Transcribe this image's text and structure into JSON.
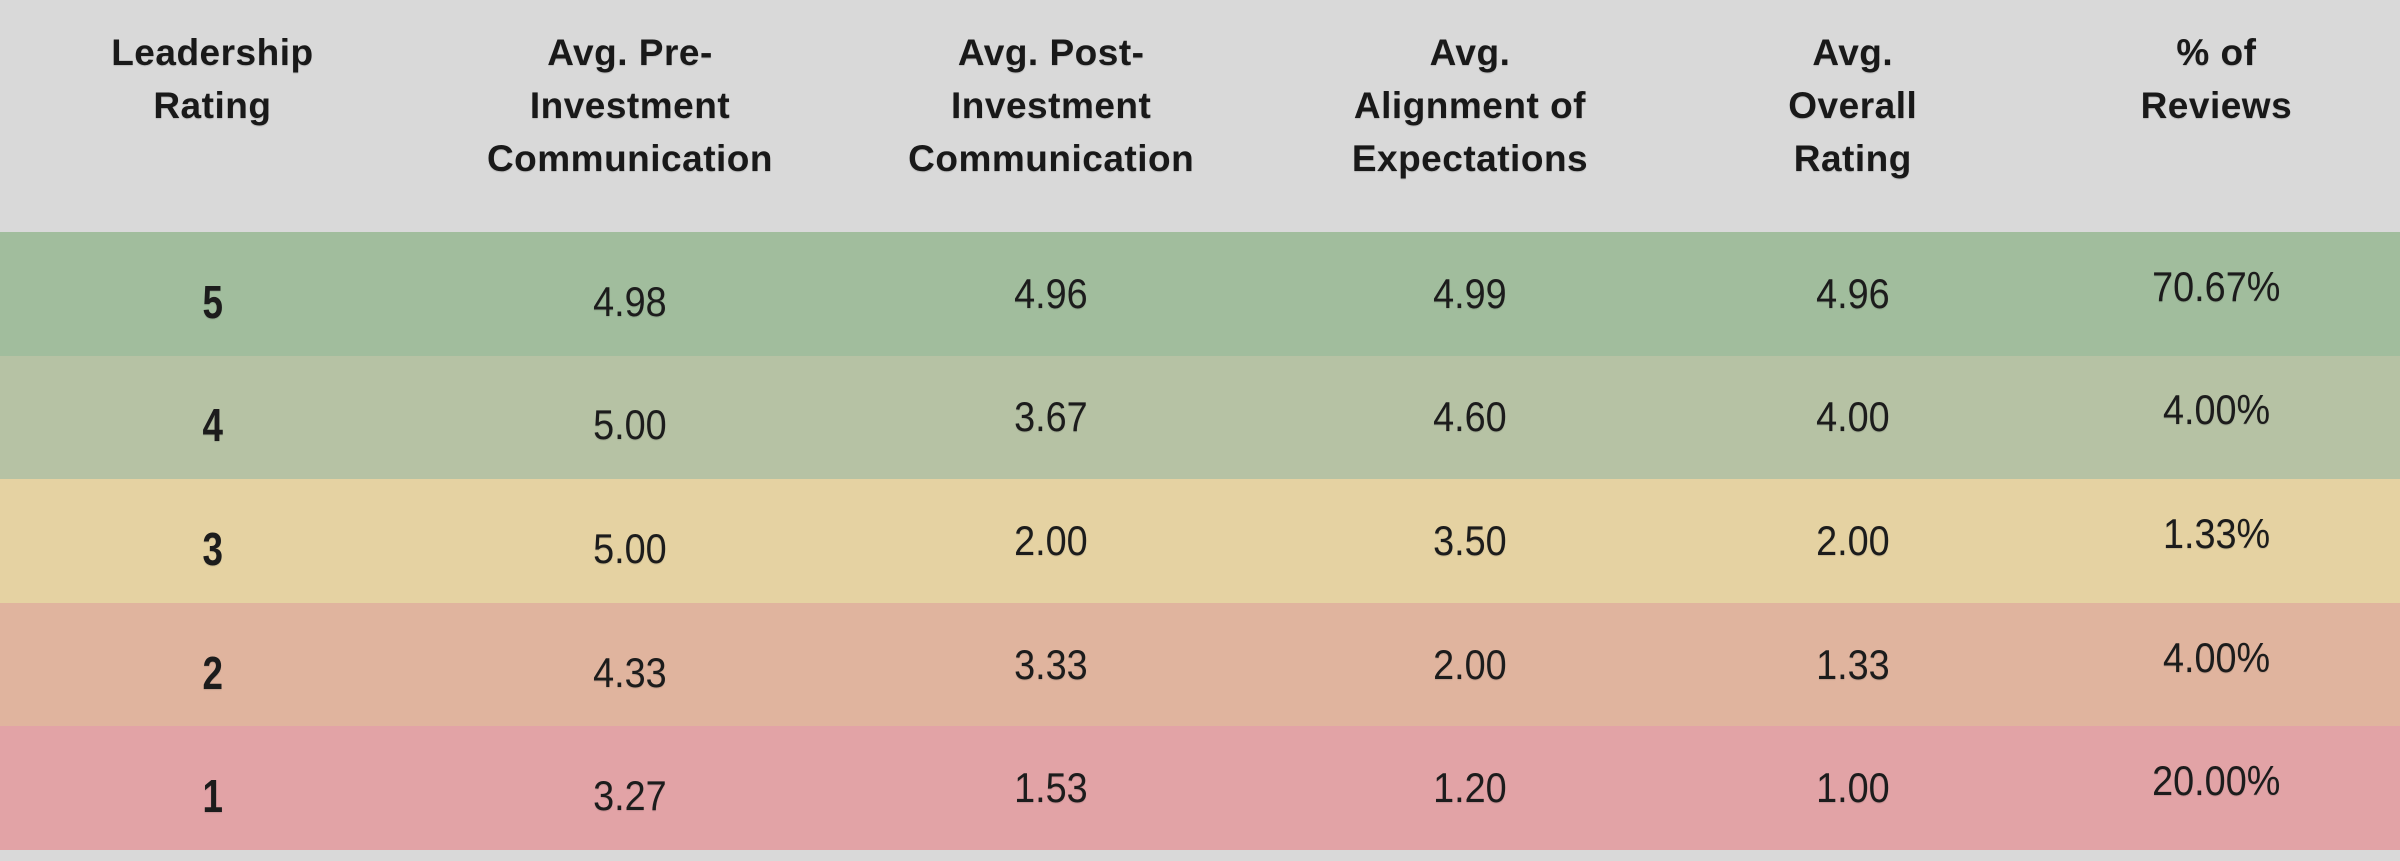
{
  "table": {
    "background": "#d9d9d9",
    "headers": [
      "Leadership\nRating",
      "Avg. Pre-\nInvestment\nCommunication",
      "Avg. Post-\nInvestment\nCommunication",
      "Avg.\nAlignment of\nExpectations",
      "Avg.\nOverall\nRating",
      "% of\nReviews"
    ],
    "rows": [
      {
        "rating": "5",
        "pre": "4.98",
        "post": "4.96",
        "alignment": "4.99",
        "overall": "4.96",
        "pct": "70.67%",
        "color": "#a1bd9d"
      },
      {
        "rating": "4",
        "pre": "5.00",
        "post": "3.67",
        "alignment": "4.60",
        "overall": "4.00",
        "pct": "4.00%",
        "color": "#b6c2a4"
      },
      {
        "rating": "3",
        "pre": "5.00",
        "post": "2.00",
        "alignment": "3.50",
        "overall": "2.00",
        "pct": "1.33%",
        "color": "#e5d2a2"
      },
      {
        "rating": "2",
        "pre": "4.33",
        "post": "3.33",
        "alignment": "2.00",
        "overall": "1.33",
        "pct": "4.00%",
        "color": "#e0b49e"
      },
      {
        "rating": "1",
        "pre": "3.27",
        "post": "1.53",
        "alignment": "1.20",
        "overall": "1.00",
        "pct": "20.00%",
        "color": "#e2a3a6"
      }
    ]
  },
  "chart_data": {
    "type": "table",
    "columns": [
      "Leadership Rating",
      "Avg. Pre-Investment Communication",
      "Avg. Post-Investment Communication",
      "Avg. Alignment of Expectations",
      "Avg. Overall Rating",
      "% of Reviews"
    ],
    "rows": [
      [
        5,
        4.98,
        4.96,
        4.99,
        4.96,
        "70.67%"
      ],
      [
        4,
        5.0,
        3.67,
        4.6,
        4.0,
        "4.00%"
      ],
      [
        3,
        5.0,
        2.0,
        3.5,
        2.0,
        "1.33%"
      ],
      [
        2,
        4.33,
        3.33,
        2.0,
        1.33,
        "4.00%"
      ],
      [
        1,
        3.27,
        1.53,
        1.2,
        1.0,
        "20.00%"
      ]
    ],
    "row_colors": [
      "#a1bd9d",
      "#b6c2a4",
      "#e5d2a2",
      "#e0b49e",
      "#e2a3a6"
    ],
    "header_background": "#d9d9d9",
    "legend_position": "none",
    "grid": false
  }
}
